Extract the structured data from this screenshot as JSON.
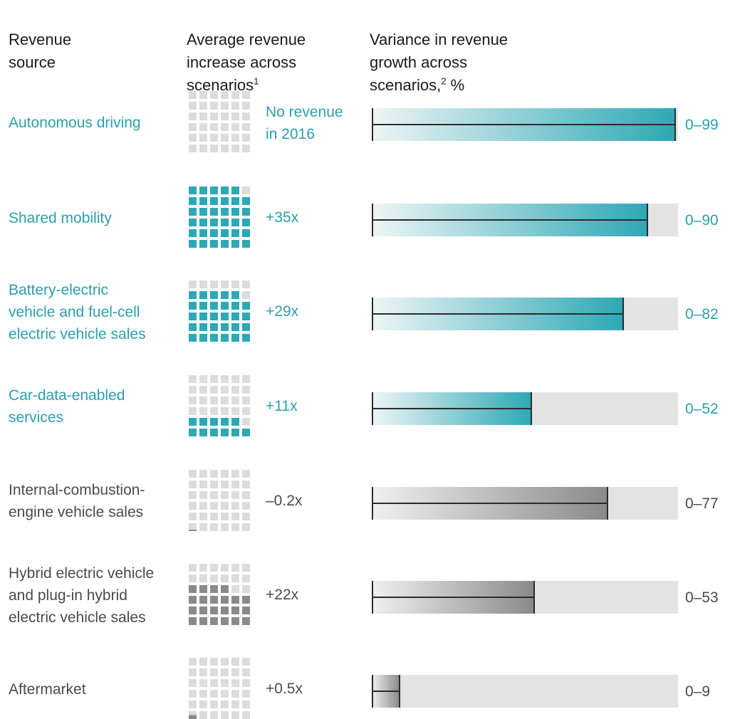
{
  "headers": {
    "source": "Revenue\nsource",
    "avg_increase": "Average revenue\nincrease across\nscenarios",
    "avg_increase_note": "1",
    "variance": "Variance in revenue\ngrowth across\nscenarios,",
    "variance_note": "2",
    "variance_unit": " %"
  },
  "colors": {
    "teal": "#2da8b5",
    "teal_text": "#2a9fad",
    "gray": "#8a8a8a",
    "gray_text": "#4a4a4a",
    "light": "#dcdcdc"
  },
  "chart_data": {
    "type": "bar",
    "xlabel": "",
    "ylabel": "",
    "ylim": [
      0,
      100
    ],
    "categories": [
      "Autonomous driving",
      "Shared mobility",
      "Battery-electric vehicle and fuel-cell electric vehicle sales",
      "Car-data-enabled services",
      "Internal-combustion-engine vehicle sales",
      "Hybrid electric vehicle and plug-in hybrid electric vehicle sales",
      "Aftermarket"
    ],
    "rows": [
      {
        "label": "Autonomous driving",
        "increase": "No revenue\nin 2016",
        "waffle_filled": 0,
        "range_min": 0,
        "range_max": 99,
        "range_label": "0–99",
        "color": "teal"
      },
      {
        "label": "Shared mobility",
        "increase": "+35x",
        "waffle_filled": 35,
        "range_min": 0,
        "range_max": 90,
        "range_label": "0–90",
        "color": "teal"
      },
      {
        "label": "Battery-electric\nvehicle and fuel-cell\nelectric vehicle sales",
        "increase": "+29x",
        "waffle_filled": 29,
        "range_min": 0,
        "range_max": 82,
        "range_label": "0–82",
        "color": "teal"
      },
      {
        "label": "Car-data-enabled\nservices",
        "increase": "+11x",
        "waffle_filled": 11,
        "range_min": 0,
        "range_max": 52,
        "range_label": "0–52",
        "color": "teal"
      },
      {
        "label": "Internal-combustion-\nengine vehicle sales",
        "increase": "–0.2x",
        "waffle_filled": 0.2,
        "range_min": 0,
        "range_max": 77,
        "range_label": "0–77",
        "color": "gray"
      },
      {
        "label": "Hybrid electric vehicle\nand plug-in hybrid\nelectric vehicle sales",
        "increase": "+22x",
        "waffle_filled": 22,
        "range_min": 0,
        "range_max": 53,
        "range_label": "0–53",
        "color": "gray"
      },
      {
        "label": "Aftermarket",
        "increase": "+0.5x",
        "waffle_filled": 0.5,
        "range_min": 0,
        "range_max": 9,
        "range_label": "0–9",
        "color": "gray"
      }
    ]
  }
}
